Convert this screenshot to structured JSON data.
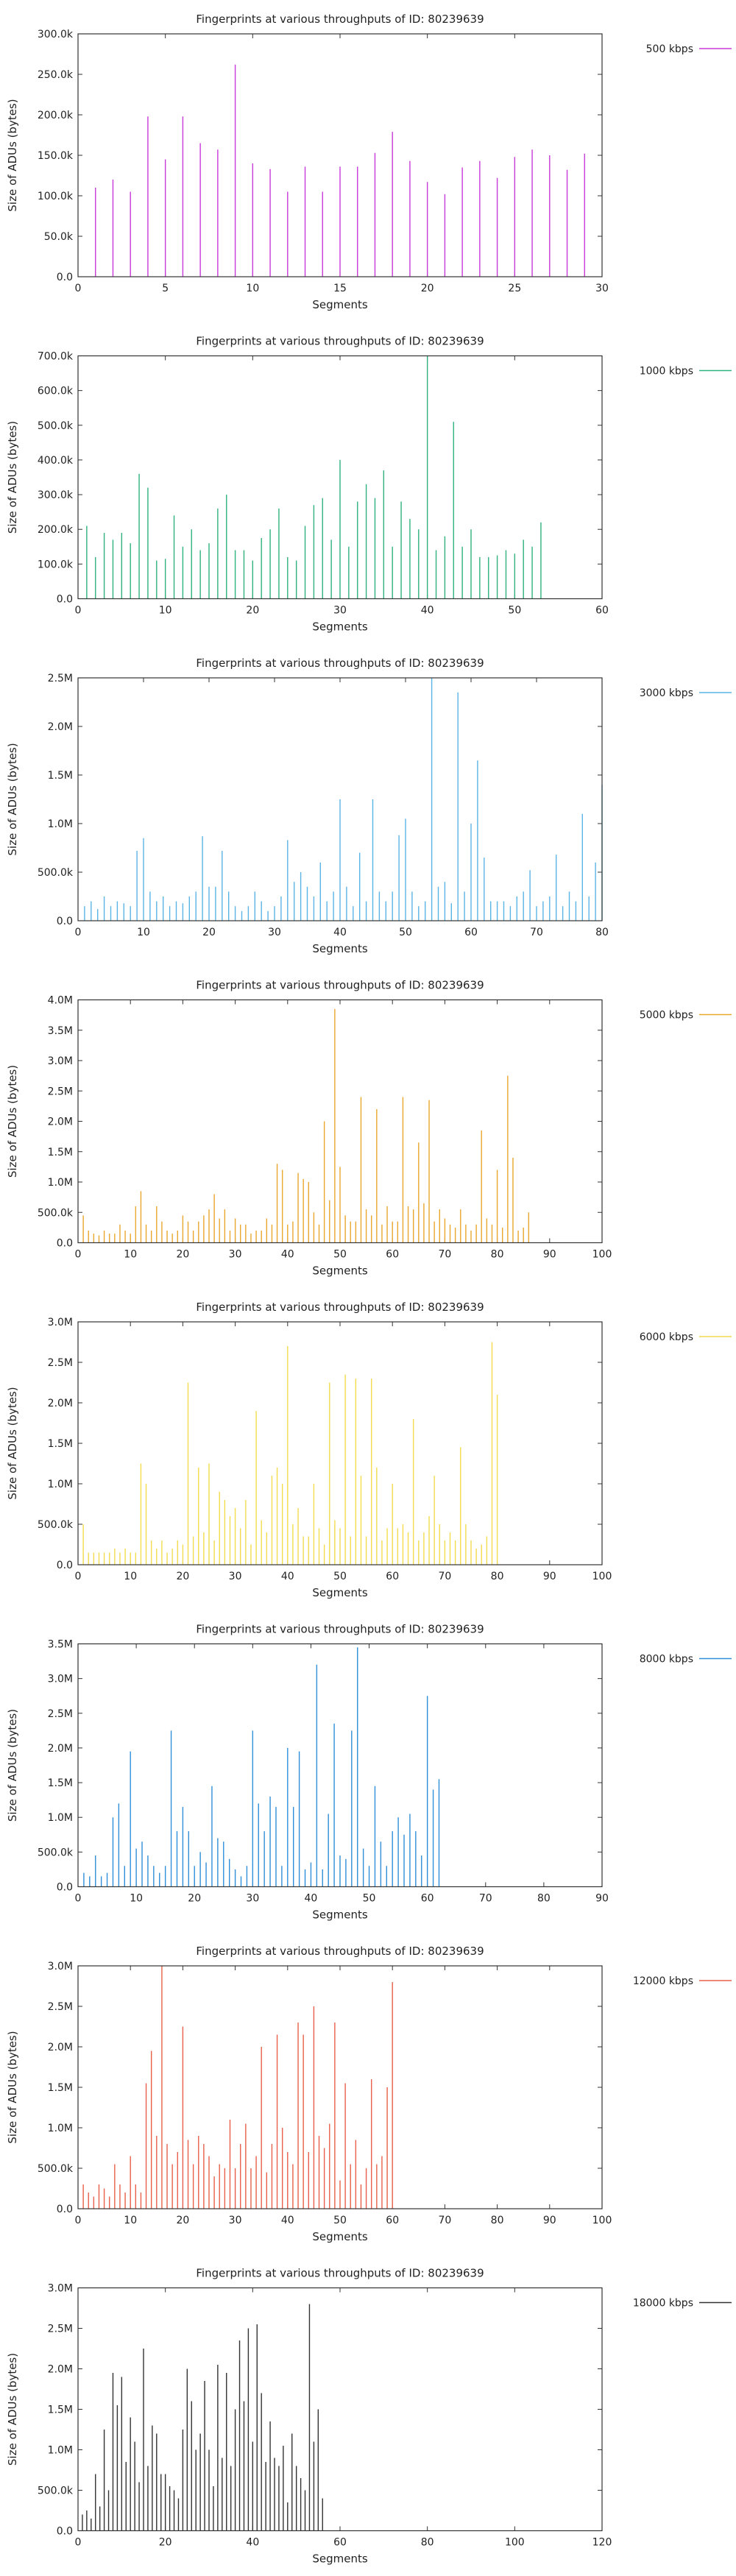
{
  "chart_data": [
    {
      "type": "bar",
      "title": "Fingerprints at various throughputs of ID: 80239639",
      "xlabel": "Segments",
      "ylabel": "Size of ADUs (bytes)",
      "legend": "500 kbps",
      "legend_position": "right",
      "color": "#c83ad9",
      "xlim": [
        0,
        30
      ],
      "ylim": [
        0,
        300000
      ],
      "xticks": [
        "0",
        "5",
        "10",
        "15",
        "20",
        "25",
        "30"
      ],
      "yticks": [
        "0.0",
        "50.0k",
        "100.0k",
        "150.0k",
        "200.0k",
        "250.0k",
        "300.0k"
      ],
      "values": [
        110000,
        120000,
        105000,
        198000,
        145000,
        198000,
        165000,
        157000,
        262000,
        140000,
        133000,
        105000,
        136000,
        105000,
        136000,
        136000,
        153000,
        179000,
        143000,
        117000,
        102000,
        135000,
        143000,
        122000,
        148000,
        157000,
        150000,
        132000,
        152000
      ]
    },
    {
      "type": "bar",
      "title": "Fingerprints at various throughputs of ID: 80239639",
      "xlabel": "Segments",
      "ylabel": "Size of ADUs (bytes)",
      "legend": "1000 kbps",
      "legend_position": "right",
      "color": "#2fb27d",
      "xlim": [
        0,
        60
      ],
      "ylim": [
        0,
        700000
      ],
      "xticks": [
        "0",
        "10",
        "20",
        "30",
        "40",
        "50",
        "60"
      ],
      "yticks": [
        "0.0",
        "100.0k",
        "200.0k",
        "300.0k",
        "400.0k",
        "500.0k",
        "600.0k",
        "700.0k"
      ],
      "values": [
        210000,
        120000,
        190000,
        170000,
        190000,
        160000,
        360000,
        320000,
        110000,
        115000,
        240000,
        150000,
        200000,
        140000,
        160000,
        260000,
        300000,
        140000,
        140000,
        110000,
        175000,
        200000,
        260000,
        120000,
        110000,
        210000,
        270000,
        290000,
        170000,
        400000,
        150000,
        280000,
        330000,
        290000,
        370000,
        150000,
        280000,
        230000,
        200000,
        700000,
        140000,
        180000,
        510000,
        150000,
        200000,
        120000,
        120000,
        125000,
        140000,
        130000,
        170000,
        150000,
        220000
      ]
    },
    {
      "type": "bar",
      "title": "Fingerprints at various throughputs of ID: 80239639",
      "xlabel": "Segments",
      "ylabel": "Size of ADUs (bytes)",
      "legend": "3000 kbps",
      "legend_position": "right",
      "color": "#5bb4e6",
      "xlim": [
        0,
        80
      ],
      "ylim": [
        0,
        2500000
      ],
      "xticks": [
        "0",
        "10",
        "20",
        "30",
        "40",
        "50",
        "60",
        "70",
        "80"
      ],
      "yticks": [
        "0.0",
        "500.0k",
        "1.0M",
        "1.5M",
        "2.0M",
        "2.5M"
      ],
      "values": [
        150000,
        200000,
        120000,
        250000,
        150000,
        200000,
        180000,
        150000,
        720000,
        850000,
        300000,
        200000,
        250000,
        150000,
        200000,
        180000,
        250000,
        300000,
        870000,
        350000,
        350000,
        720000,
        300000,
        150000,
        100000,
        150000,
        300000,
        200000,
        100000,
        150000,
        250000,
        830000,
        400000,
        500000,
        350000,
        250000,
        600000,
        200000,
        300000,
        1250000,
        350000,
        150000,
        700000,
        200000,
        1250000,
        300000,
        200000,
        300000,
        880000,
        1050000,
        300000,
        150000,
        200000,
        2500000,
        350000,
        400000,
        180000,
        2350000,
        300000,
        1000000,
        1650000,
        650000,
        200000,
        200000,
        200000,
        150000,
        250000,
        300000,
        520000,
        150000,
        200000,
        250000,
        680000,
        150000,
        300000,
        200000,
        1100000,
        250000,
        600000,
        1400000
      ]
    },
    {
      "type": "bar",
      "title": "Fingerprints at various throughputs of ID: 80239639",
      "xlabel": "Segments",
      "ylabel": "Size of ADUs (bytes)",
      "legend": "5000 kbps",
      "legend_position": "right",
      "color": "#e9a72d",
      "xlim": [
        0,
        100
      ],
      "ylim": [
        0,
        4000000
      ],
      "xticks": [
        "0",
        "10",
        "20",
        "30",
        "40",
        "50",
        "60",
        "70",
        "80",
        "90",
        "100"
      ],
      "yticks": [
        "0.0",
        "500.0k",
        "1.0M",
        "1.5M",
        "2.0M",
        "2.5M",
        "3.0M",
        "3.5M",
        "4.0M"
      ],
      "values": [
        450000,
        200000,
        150000,
        120000,
        200000,
        150000,
        150000,
        300000,
        200000,
        150000,
        600000,
        850000,
        300000,
        200000,
        600000,
        350000,
        200000,
        150000,
        200000,
        450000,
        350000,
        200000,
        350000,
        450000,
        550000,
        800000,
        400000,
        550000,
        200000,
        400000,
        300000,
        300000,
        150000,
        200000,
        200000,
        400000,
        300000,
        1300000,
        1200000,
        300000,
        350000,
        1150000,
        1050000,
        1000000,
        500000,
        300000,
        2000000,
        700000,
        3850000,
        1250000,
        450000,
        350000,
        350000,
        2400000,
        550000,
        450000,
        2200000,
        300000,
        600000,
        350000,
        350000,
        2400000,
        600000,
        550000,
        1650000,
        650000,
        2350000,
        350000,
        550000,
        400000,
        300000,
        250000,
        550000,
        300000,
        200000,
        300000,
        1850000,
        400000,
        300000,
        1200000,
        250000,
        2750000,
        1400000,
        200000,
        250000,
        500000
      ]
    },
    {
      "type": "bar",
      "title": "Fingerprints at various throughputs of ID: 80239639",
      "xlabel": "Segments",
      "ylabel": "Size of ADUs (bytes)",
      "legend": "6000 kbps",
      "legend_position": "right",
      "color": "#f3dc4e",
      "xlim": [
        0,
        100
      ],
      "ylim": [
        0,
        3000000
      ],
      "xticks": [
        "0",
        "10",
        "20",
        "30",
        "40",
        "50",
        "60",
        "70",
        "80",
        "90",
        "100"
      ],
      "yticks": [
        "0.0",
        "500.0k",
        "1.0M",
        "1.5M",
        "2.0M",
        "2.5M",
        "3.0M"
      ],
      "values": [
        500000,
        150000,
        150000,
        150000,
        150000,
        150000,
        200000,
        150000,
        200000,
        150000,
        150000,
        1250000,
        1000000,
        300000,
        200000,
        300000,
        150000,
        200000,
        300000,
        250000,
        2250000,
        350000,
        1200000,
        400000,
        1250000,
        300000,
        900000,
        800000,
        600000,
        700000,
        450000,
        800000,
        250000,
        1900000,
        550000,
        400000,
        1100000,
        1200000,
        1000000,
        2700000,
        500000,
        700000,
        350000,
        350000,
        1000000,
        450000,
        250000,
        2250000,
        550000,
        450000,
        2350000,
        350000,
        2300000,
        1100000,
        350000,
        2300000,
        1200000,
        300000,
        450000,
        1000000,
        450000,
        500000,
        400000,
        1800000,
        300000,
        400000,
        600000,
        1100000,
        500000,
        300000,
        400000,
        300000,
        1450000,
        500000,
        300000,
        200000,
        250000,
        350000,
        2750000,
        2100000
      ]
    },
    {
      "type": "bar",
      "title": "Fingerprints at various throughputs of ID: 80239639",
      "xlabel": "Segments",
      "ylabel": "Size of ADUs (bytes)",
      "legend": "8000 kbps",
      "legend_position": "right",
      "color": "#2f8fd8",
      "xlim": [
        0,
        90
      ],
      "ylim": [
        0,
        3500000
      ],
      "xticks": [
        "0",
        "10",
        "20",
        "30",
        "40",
        "50",
        "60",
        "70",
        "80",
        "90"
      ],
      "yticks": [
        "0.0",
        "500.0k",
        "1.0M",
        "1.5M",
        "2.0M",
        "2.5M",
        "3.0M",
        "3.5M"
      ],
      "values": [
        200000,
        150000,
        450000,
        150000,
        200000,
        1000000,
        1200000,
        300000,
        1950000,
        550000,
        650000,
        450000,
        300000,
        200000,
        300000,
        2250000,
        800000,
        1150000,
        800000,
        300000,
        500000,
        350000,
        1450000,
        700000,
        650000,
        400000,
        250000,
        150000,
        300000,
        2250000,
        1200000,
        800000,
        1300000,
        1150000,
        300000,
        2000000,
        1150000,
        1950000,
        250000,
        350000,
        3200000,
        250000,
        1050000,
        2350000,
        450000,
        400000,
        2250000,
        3450000,
        550000,
        300000,
        1450000,
        650000,
        300000,
        800000,
        1000000,
        750000,
        1050000,
        800000,
        450000,
        2750000,
        1400000,
        1550000
      ]
    },
    {
      "type": "bar",
      "title": "Fingerprints at various throughputs of ID: 80239639",
      "xlabel": "Segments",
      "ylabel": "Size of ADUs (bytes)",
      "legend": "12000 kbps",
      "legend_position": "right",
      "color": "#e9604a",
      "xlim": [
        0,
        100
      ],
      "ylim": [
        0,
        3000000
      ],
      "xticks": [
        "0",
        "10",
        "20",
        "30",
        "40",
        "50",
        "60",
        "70",
        "80",
        "90",
        "100"
      ],
      "yticks": [
        "0.0",
        "500.0k",
        "1.0M",
        "1.5M",
        "2.0M",
        "2.5M",
        "3.0M"
      ],
      "values": [
        300000,
        200000,
        150000,
        300000,
        250000,
        150000,
        550000,
        300000,
        200000,
        650000,
        300000,
        200000,
        1550000,
        1950000,
        900000,
        3000000,
        800000,
        550000,
        700000,
        2250000,
        850000,
        550000,
        900000,
        800000,
        650000,
        400000,
        550000,
        500000,
        1100000,
        500000,
        800000,
        1050000,
        500000,
        650000,
        2000000,
        450000,
        800000,
        2150000,
        1000000,
        700000,
        550000,
        2300000,
        2150000,
        700000,
        2500000,
        900000,
        750000,
        1050000,
        2300000,
        350000,
        1550000,
        550000,
        850000,
        300000,
        500000,
        1600000,
        550000,
        650000,
        1500000,
        2800000
      ]
    },
    {
      "type": "bar",
      "title": "Fingerprints at various throughputs of ID: 80239639",
      "xlabel": "Segments",
      "ylabel": "Size of ADUs (bytes)",
      "legend": "18000 kbps",
      "legend_position": "right",
      "color": "#333333",
      "xlim": [
        0,
        120
      ],
      "ylim": [
        0,
        3000000
      ],
      "xticks": [
        "0",
        "20",
        "40",
        "60",
        "80",
        "100",
        "120"
      ],
      "yticks": [
        "0.0",
        "500.0k",
        "1.0M",
        "1.5M",
        "2.0M",
        "2.5M",
        "3.0M"
      ],
      "values": [
        200000,
        250000,
        150000,
        700000,
        300000,
        1250000,
        500000,
        1950000,
        1550000,
        1900000,
        850000,
        1400000,
        1100000,
        600000,
        2250000,
        800000,
        1300000,
        1200000,
        700000,
        700000,
        550000,
        500000,
        400000,
        1250000,
        2000000,
        1600000,
        1000000,
        1200000,
        1850000,
        1000000,
        550000,
        2050000,
        900000,
        1950000,
        800000,
        1500000,
        2350000,
        1600000,
        2500000,
        1100000,
        2550000,
        1700000,
        850000,
        1350000,
        900000,
        800000,
        1050000,
        350000,
        1200000,
        800000,
        650000,
        500000,
        2800000,
        1100000,
        1500000,
        400000
      ]
    }
  ]
}
